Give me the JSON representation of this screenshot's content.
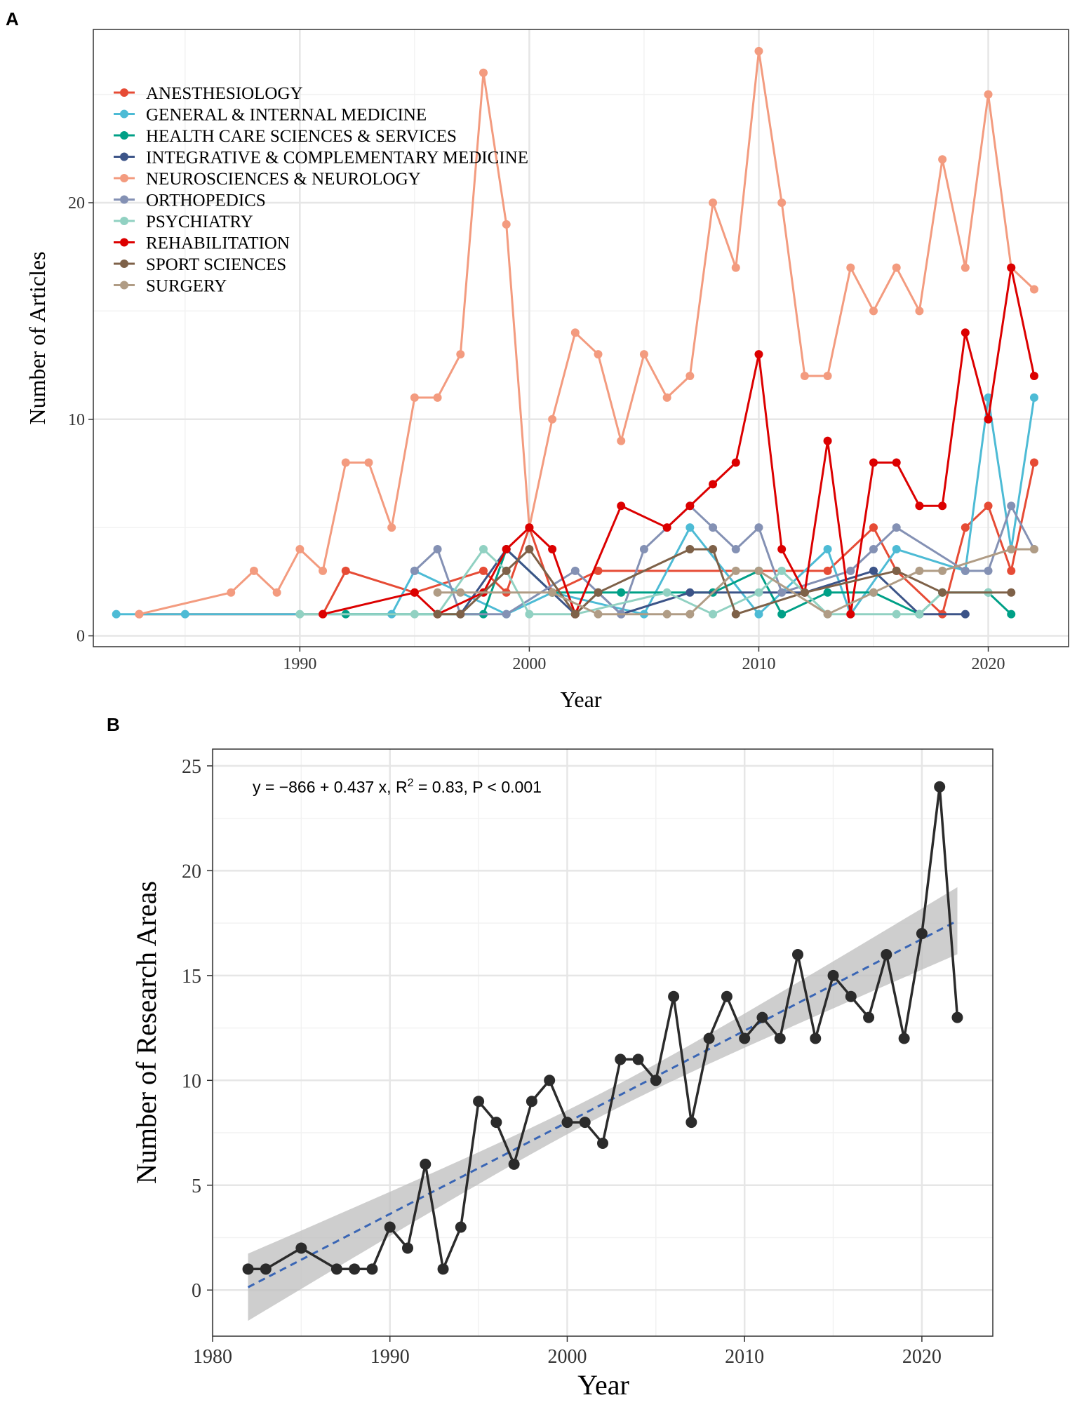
{
  "chart_data": [
    {
      "panel": "A",
      "type": "line",
      "xlabel": "Year",
      "ylabel": "Number of Articles",
      "xlim": [
        1981,
        2023.5
      ],
      "ylim": [
        -0.5,
        28
      ],
      "xticks": [
        1990,
        2000,
        2010,
        2020
      ],
      "yticks": [
        0,
        10,
        20
      ],
      "legend_position": "top-left",
      "series": [
        {
          "name": "ANESTHESIOLOGY",
          "color": "#e64b35",
          "x": [
            1983,
            1991,
            1992,
            1995,
            1998,
            1999,
            2000,
            2001,
            2003,
            2013,
            2015,
            2016,
            2018,
            2019,
            2020,
            2021,
            2022
          ],
          "y": [
            1,
            1,
            3,
            2,
            3,
            2,
            5,
            2,
            3,
            3,
            5,
            3,
            1,
            5,
            6,
            3,
            8
          ]
        },
        {
          "name": "GENERAL & INTERNAL MEDICINE",
          "color": "#4dbbd5",
          "x": [
            1982,
            1985,
            1994,
            1995,
            1999,
            2001,
            2005,
            2007,
            2010,
            2013,
            2014,
            2016,
            2019,
            2020,
            2021,
            2022
          ],
          "y": [
            1,
            1,
            1,
            3,
            1,
            2,
            1,
            5,
            1,
            4,
            1,
            4,
            3,
            11,
            4,
            11
          ]
        },
        {
          "name": "HEALTH CARE SCIENCES & SERVICES",
          "color": "#00a087",
          "x": [
            1992,
            1998,
            1999,
            2001,
            2004,
            2008,
            2010,
            2011,
            2013,
            2015,
            2017,
            2018,
            2020,
            2021
          ],
          "y": [
            1,
            1,
            4,
            2,
            2,
            2,
            3,
            1,
            2,
            2,
            1,
            2,
            2,
            1
          ]
        },
        {
          "name": "INTEGRATIVE & COMPLEMENTARY MEDICINE",
          "color": "#3c5488",
          "x": [
            1997,
            1999,
            2002,
            2003,
            2004,
            2007,
            2012,
            2015,
            2017,
            2019
          ],
          "y": [
            1,
            4,
            1,
            2,
            1,
            2,
            2,
            3,
            1,
            1
          ]
        },
        {
          "name": "NEUROSCIENCES & NEUROLOGY",
          "color": "#f39b7f",
          "x": [
            1983,
            1987,
            1988,
            1989,
            1990,
            1991,
            1992,
            1993,
            1994,
            1995,
            1996,
            1997,
            1998,
            1999,
            2000,
            2001,
            2002,
            2003,
            2004,
            2005,
            2006,
            2007,
            2008,
            2009,
            2010,
            2011,
            2012,
            2013,
            2014,
            2015,
            2016,
            2017,
            2018,
            2019,
            2020,
            2021,
            2022
          ],
          "y": [
            1,
            2,
            3,
            2,
            4,
            3,
            8,
            8,
            5,
            11,
            11,
            13,
            26,
            19,
            5,
            10,
            14,
            13,
            9,
            13,
            11,
            12,
            20,
            17,
            27,
            20,
            12,
            12,
            17,
            15,
            17,
            15,
            22,
            17,
            25,
            17,
            16
          ]
        },
        {
          "name": "ORTHOPEDICS",
          "color": "#8491b4",
          "x": [
            1995,
            1996,
            1997,
            1999,
            2002,
            2004,
            2005,
            2007,
            2008,
            2009,
            2010,
            2011,
            2014,
            2015,
            2016,
            2019,
            2020,
            2021,
            2022
          ],
          "y": [
            3,
            4,
            1,
            1,
            3,
            1,
            4,
            6,
            5,
            4,
            5,
            2,
            3,
            4,
            5,
            3,
            3,
            6,
            4
          ]
        },
        {
          "name": "PSYCHIATRY",
          "color": "#91d1c2",
          "x": [
            1990,
            1995,
            1996,
            1998,
            1999,
            2000,
            2002,
            2006,
            2008,
            2010,
            2011,
            2013,
            2016,
            2017,
            2018,
            2020
          ],
          "y": [
            1,
            1,
            1,
            4,
            3,
            1,
            1,
            2,
            1,
            2,
            3,
            1,
            1,
            1,
            2,
            2
          ]
        },
        {
          "name": "REHABILITATION",
          "color": "#dc0000",
          "x": [
            1991,
            1995,
            1996,
            1998,
            1999,
            2000,
            2001,
            2002,
            2004,
            2006,
            2007,
            2008,
            2009,
            2010,
            2011,
            2012,
            2013,
            2014,
            2015,
            2016,
            2017,
            2018,
            2019,
            2020,
            2021,
            2022
          ],
          "y": [
            1,
            2,
            1,
            2,
            4,
            5,
            4,
            1,
            6,
            5,
            6,
            7,
            8,
            13,
            4,
            2,
            9,
            1,
            8,
            8,
            6,
            6,
            14,
            10,
            17,
            12
          ]
        },
        {
          "name": "SPORT SCIENCES",
          "color": "#7e6148",
          "x": [
            1996,
            1997,
            1999,
            2000,
            2002,
            2003,
            2007,
            2008,
            2009,
            2012,
            2016,
            2018,
            2021
          ],
          "y": [
            1,
            1,
            3,
            4,
            1,
            2,
            4,
            4,
            1,
            2,
            3,
            2,
            2
          ]
        },
        {
          "name": "SURGERY",
          "color": "#b09c85",
          "x": [
            1996,
            1997,
            2001,
            2003,
            2006,
            2007,
            2009,
            2010,
            2013,
            2015,
            2017,
            2018,
            2021,
            2022
          ],
          "y": [
            2,
            2,
            2,
            1,
            1,
            1,
            3,
            3,
            1,
            2,
            3,
            3,
            4,
            4
          ]
        }
      ]
    },
    {
      "panel": "B",
      "type": "scatter",
      "xlabel": "Year",
      "ylabel": "Number of Research Areas",
      "xlim": [
        1980,
        2024
      ],
      "ylim": [
        -2.2,
        25.8
      ],
      "xticks": [
        1980,
        1990,
        2000,
        2010,
        2020
      ],
      "yticks": [
        0,
        5,
        10,
        15,
        20,
        25
      ],
      "annotation": {
        "y_prefix": "y = −866 + 0.437 x, R",
        "sup": "2",
        "suffix": " = 0.83, P < 0.001"
      },
      "fit": {
        "intercept": -866,
        "slope": 0.437,
        "x_range": [
          1982,
          2022
        ],
        "band_halfwidth_ends": 1.6,
        "band_halfwidth_mid": 0.55
      },
      "series": [
        {
          "name": "Number of Research Areas",
          "color": "#2b2b2b",
          "x": [
            1982,
            1983,
            1985,
            1987,
            1988,
            1989,
            1990,
            1991,
            1992,
            1993,
            1994,
            1995,
            1996,
            1997,
            1998,
            1999,
            2000,
            2001,
            2002,
            2003,
            2004,
            2005,
            2006,
            2007,
            2008,
            2009,
            2010,
            2011,
            2012,
            2013,
            2014,
            2015,
            2016,
            2017,
            2018,
            2019,
            2020,
            2021,
            2022
          ],
          "y": [
            1,
            1,
            2,
            1,
            1,
            1,
            3,
            2,
            6,
            1,
            3,
            9,
            8,
            6,
            9,
            10,
            8,
            8,
            7,
            11,
            11,
            10,
            14,
            8,
            12,
            14,
            12,
            13,
            12,
            16,
            12,
            15,
            14,
            13,
            16,
            12,
            17,
            24,
            13
          ]
        }
      ]
    }
  ],
  "colors": {
    "fit_line": "#3a66b5",
    "band": "#bdbdbd",
    "grid": "#e6e6e6"
  }
}
